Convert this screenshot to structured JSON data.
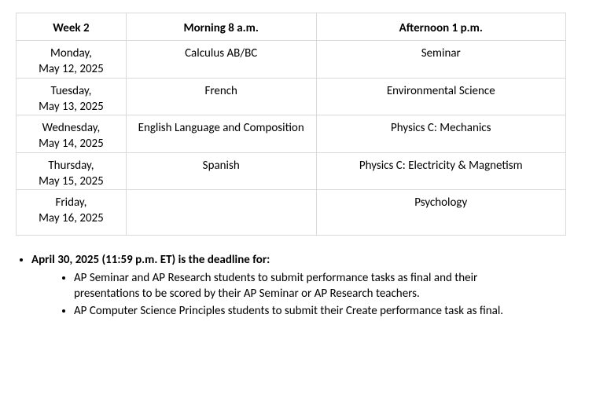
{
  "table": {
    "headers": {
      "week": "Week 2",
      "morning": "Morning 8 a.m.",
      "afternoon": "Afternoon 1 p.m."
    },
    "rows": [
      {
        "day": "Monday,",
        "date": "May 12, 2025",
        "morning": "Calculus AB/BC",
        "afternoon": "Seminar"
      },
      {
        "day": "Tuesday,",
        "date": "May 13, 2025",
        "morning": "French",
        "afternoon": "Environmental Science"
      },
      {
        "day": "Wednesday,",
        "date": "May 14, 2025",
        "morning": "English Language and Composition",
        "afternoon": "Physics C: Mechanics"
      },
      {
        "day": "Thursday,",
        "date": "May 15, 2025",
        "morning": "Spanish",
        "afternoon": "Physics C: Electricity & Magnetism"
      },
      {
        "day": "Friday,",
        "date": "May 16, 2025",
        "morning": "",
        "afternoon": "Psychology"
      }
    ]
  },
  "deadline": {
    "lead": "April 30, 2025 (11:59 p.m. ET) is the deadline for:",
    "items": [
      "AP Seminar and AP Research students to submit performance tasks as final and their presentations to be scored by their AP Seminar or AP Research teachers.",
      "AP Computer Science Principles students to submit their Create performance task as final."
    ]
  }
}
